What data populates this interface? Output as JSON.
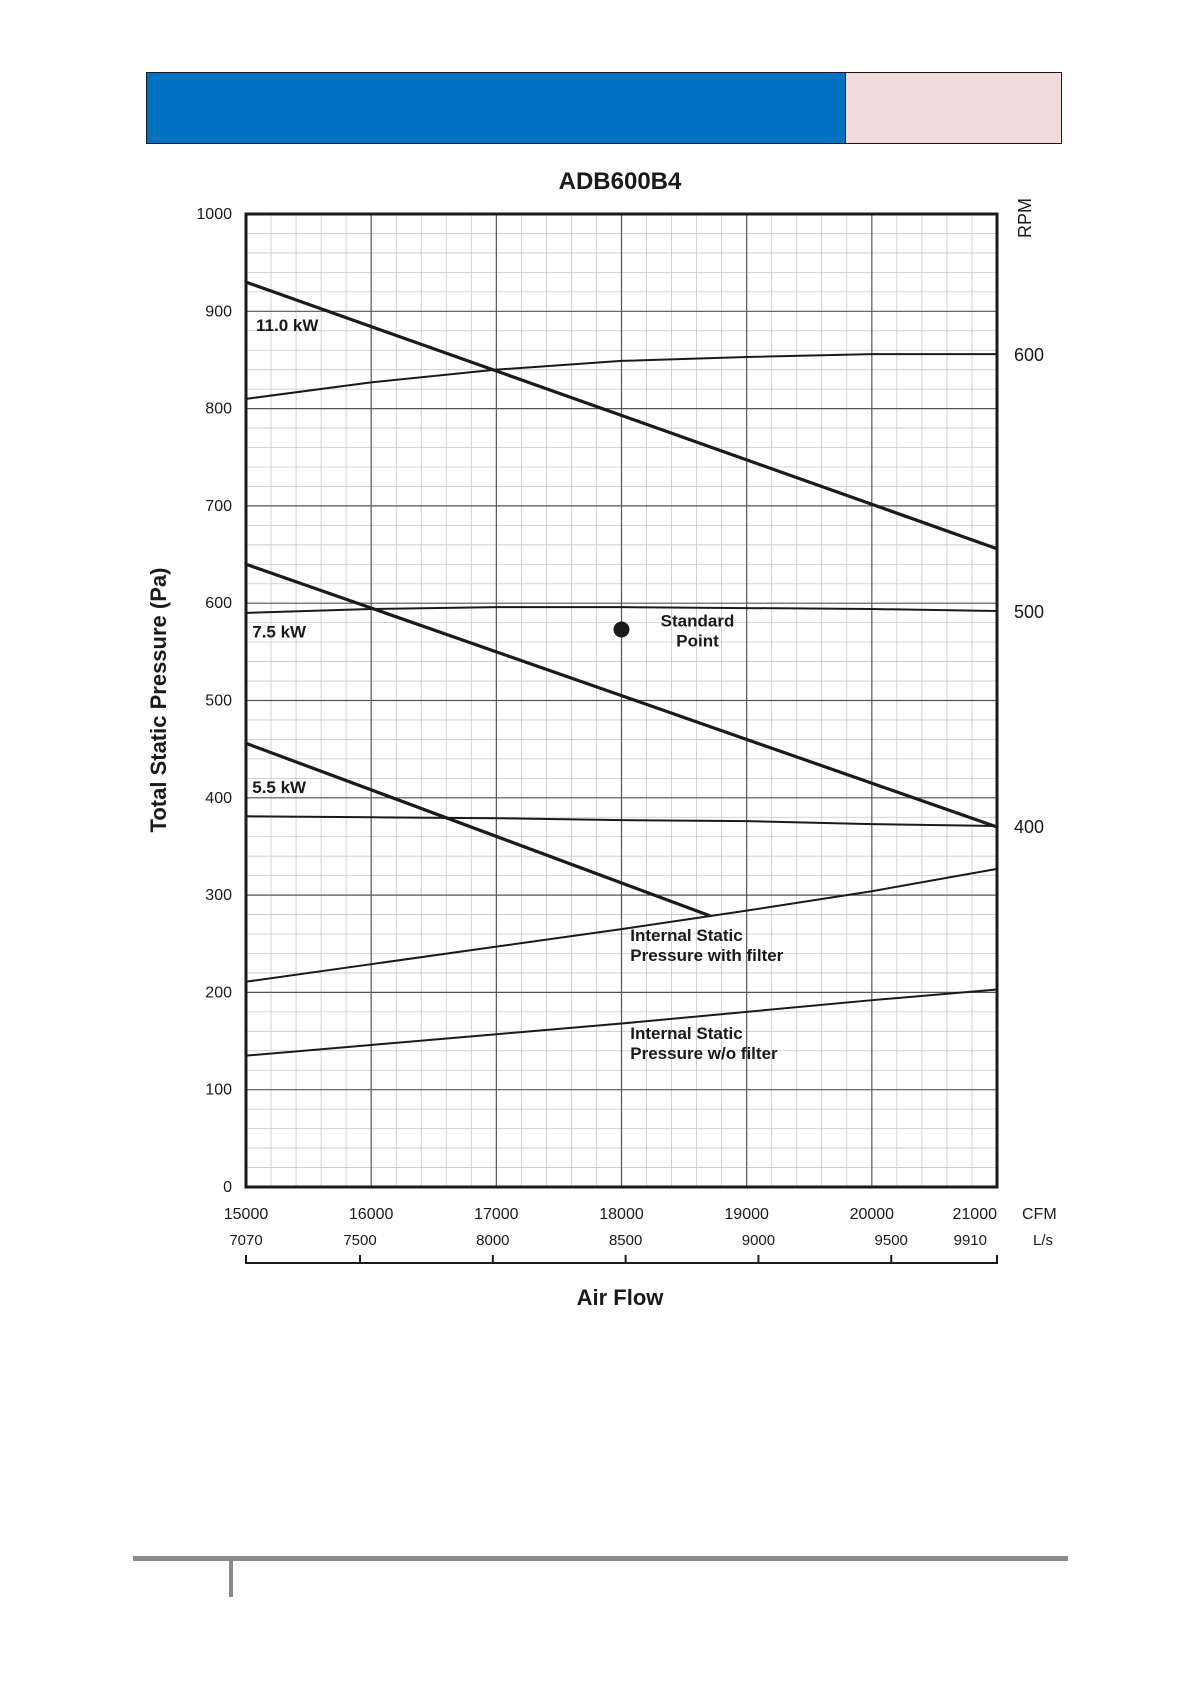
{
  "colors": {
    "header_blue": "#0070c0",
    "header_pink": "#f2dcdb",
    "ink": "#1a1a1a",
    "grid_major": "#555555",
    "grid_minor": "#c8c8c8",
    "footer_rule": "#8a8a8a"
  },
  "chart_data": {
    "type": "line",
    "title": "ADB600B4",
    "xlabel": "Air Flow",
    "ylabel": "Total Static Pressure (Pa)",
    "y2label": "RPM",
    "xlim": [
      15000,
      21000
    ],
    "ylim": [
      0,
      1000
    ],
    "x_unit": "CFM",
    "x2_unit": "L/s",
    "grid": true,
    "x_ticks": [
      15000,
      16000,
      17000,
      18000,
      19000,
      20000,
      21000
    ],
    "y_ticks": [
      0,
      100,
      200,
      300,
      400,
      500,
      600,
      700,
      800,
      900,
      1000
    ],
    "x2_ticks": [
      {
        "label": "7070",
        "cfm": 15000
      },
      {
        "label": "7500",
        "cfm": 15911
      },
      {
        "label": "8000",
        "cfm": 16972
      },
      {
        "label": "8500",
        "cfm": 18033
      },
      {
        "label": "9000",
        "cfm": 19094
      },
      {
        "label": "9500",
        "cfm": 20155
      },
      {
        "label": "9910",
        "cfm": 21000
      }
    ],
    "rpm_ticks": [
      {
        "label": "600",
        "y": 856
      },
      {
        "label": "500",
        "y": 592
      },
      {
        "label": "400",
        "y": 371
      }
    ],
    "series": [
      {
        "name": "11.0 kW",
        "kind": "power",
        "x": [
          15000,
          21000
        ],
        "y": [
          930,
          656
        ]
      },
      {
        "name": "7.5 kW",
        "kind": "power",
        "x": [
          15000,
          21000
        ],
        "y": [
          640,
          370
        ]
      },
      {
        "name": "5.5 kW",
        "kind": "power",
        "x": [
          15000,
          18700
        ],
        "y": [
          456,
          279
        ]
      },
      {
        "name": "600 RPM",
        "kind": "rpm",
        "x": [
          15000,
          16000,
          17000,
          18000,
          19000,
          20000,
          21000
        ],
        "y": [
          810,
          827,
          840,
          849,
          853,
          856,
          856
        ]
      },
      {
        "name": "500 RPM",
        "kind": "rpm",
        "x": [
          15000,
          16000,
          17000,
          18000,
          19000,
          20000,
          21000
        ],
        "y": [
          590,
          594,
          596,
          596,
          595,
          594,
          592
        ]
      },
      {
        "name": "400 RPM",
        "kind": "rpm",
        "x": [
          15000,
          16000,
          17000,
          18000,
          19000,
          20000,
          21000
        ],
        "y": [
          381,
          380,
          379,
          377,
          376,
          373,
          371
        ]
      },
      {
        "name": "Internal Static Pressure with filter",
        "kind": "internal",
        "x": [
          15000,
          16000,
          17000,
          18000,
          19000,
          20000,
          21000
        ],
        "y": [
          211,
          229,
          247,
          265,
          284,
          304,
          327
        ]
      },
      {
        "name": "Internal Static Pressure w/o filter",
        "kind": "internal",
        "x": [
          15000,
          16000,
          17000,
          18000,
          19000,
          20000,
          21000
        ],
        "y": [
          135,
          146,
          157,
          168,
          180,
          192,
          203
        ]
      }
    ],
    "power_labels": [
      "11.0 kW",
      "7.5 kW",
      "5.5 kW"
    ],
    "power_label_points": [
      {
        "x": 15080,
        "y": 880
      },
      {
        "x": 15050,
        "y": 565
      },
      {
        "x": 15050,
        "y": 405
      }
    ],
    "standard_point": {
      "x": 18000,
      "y": 573,
      "label_lines": [
        "Standard",
        "Point"
      ]
    },
    "annotations": [
      {
        "lines": [
          "Internal Static",
          "Pressure with filter"
        ],
        "x": 18070,
        "y": 253
      },
      {
        "lines": [
          "Internal Static",
          "Pressure w/o filter"
        ],
        "x": 18070,
        "y": 152
      }
    ]
  }
}
